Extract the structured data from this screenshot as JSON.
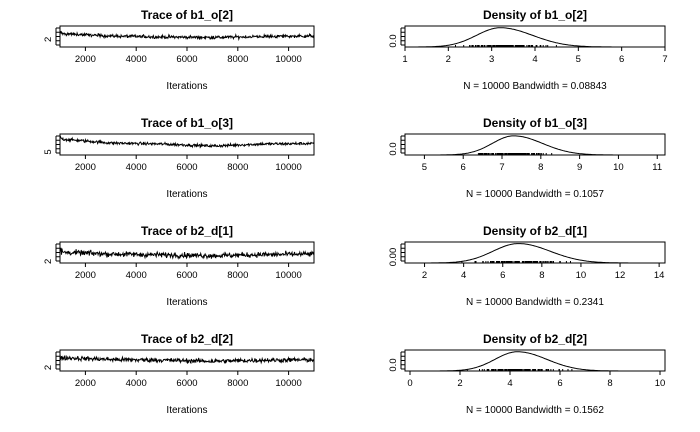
{
  "chart_data": [
    {
      "type": "line",
      "kind": "trace",
      "title": "Trace of b1_o[2]",
      "xlabel": "Iterations",
      "xlim": [
        1000,
        11000
      ],
      "xticks": [
        2000,
        4000,
        6000,
        8000,
        10000
      ],
      "ylim": [
        1.2,
        3.4
      ],
      "yticks": [
        2
      ],
      "level": [
        2.6,
        2.35,
        2.25,
        2.2,
        2.3,
        2.35
      ],
      "noise": 0.12
    },
    {
      "type": "line",
      "kind": "density",
      "title": "Density of b1_o[2]",
      "xlabel": "N = 10000   Bandwidth = 0.08843",
      "xlim": [
        1,
        7
      ],
      "xticks": [
        1,
        2,
        3,
        4,
        5,
        6,
        7
      ],
      "ylim": [
        0,
        0.72
      ],
      "yticks": [
        0.0
      ],
      "ytick_labels": [
        "0.0"
      ],
      "curve": {
        "mean": 3.2,
        "sd": 0.55,
        "skew": 0.35,
        "peak": 0.66,
        "from": 1.0,
        "to": 6.9
      }
    },
    {
      "type": "line",
      "kind": "trace",
      "title": "Trace of b1_o[3]",
      "xlabel": "Iterations",
      "xlim": [
        1000,
        11000
      ],
      "xticks": [
        2000,
        4000,
        6000,
        8000,
        10000
      ],
      "ylim": [
        4.4,
        8.6
      ],
      "yticks": [
        5
      ],
      "level": [
        7.6,
        6.8,
        6.6,
        6.2,
        6.6,
        6.7
      ],
      "noise": 0.2
    },
    {
      "type": "line",
      "kind": "density",
      "title": "Density of b1_o[3]",
      "xlabel": "N = 10000   Bandwidth = 0.1057",
      "xlim": [
        4.5,
        11.2
      ],
      "xticks": [
        5,
        6,
        7,
        8,
        9,
        10,
        11
      ],
      "ylim": [
        0,
        0.68
      ],
      "yticks": [
        0.0
      ],
      "ytick_labels": [
        "0.0"
      ],
      "curve": {
        "mean": 7.3,
        "sd": 0.55,
        "skew": 0.35,
        "peak": 0.62,
        "from": 4.8,
        "to": 11.1
      }
    },
    {
      "type": "line",
      "kind": "trace",
      "title": "Trace of b2_d[1]",
      "xlabel": "Iterations",
      "xlim": [
        1000,
        11000
      ],
      "xticks": [
        2000,
        4000,
        6000,
        8000,
        10000
      ],
      "ylim": [
        1.2,
        11.5
      ],
      "yticks": [
        2
      ],
      "level": [
        6.5,
        5.6,
        5.2,
        4.8,
        5.3,
        5.6
      ],
      "noise": 0.9
    },
    {
      "type": "line",
      "kind": "density",
      "title": "Density of b2_d[1]",
      "xlabel": "N = 10000   Bandwidth = 0.2341",
      "xlim": [
        1,
        14.3
      ],
      "xticks": [
        2,
        4,
        6,
        8,
        10,
        12,
        14
      ],
      "ylim": [
        0,
        0.2
      ],
      "yticks": [
        0.0
      ],
      "ytick_labels": [
        "0.00"
      ],
      "curve": {
        "mean": 6.8,
        "sd": 1.3,
        "skew": 0.25,
        "peak": 0.185,
        "from": 1.2,
        "to": 14.2
      }
    },
    {
      "type": "line",
      "kind": "trace",
      "title": "Trace of b2_d[2]",
      "xlabel": "Iterations",
      "xlim": [
        1000,
        11000
      ],
      "xticks": [
        2000,
        4000,
        6000,
        8000,
        10000
      ],
      "ylim": [
        1.0,
        7.0
      ],
      "yticks": [
        2
      ],
      "level": [
        4.8,
        4.3,
        4.1,
        3.8,
        4.1,
        4.2
      ],
      "noise": 0.45
    },
    {
      "type": "line",
      "kind": "density",
      "title": "Density of b2_d[2]",
      "xlabel": "N = 10000   Bandwidth = 0.1562",
      "xlim": [
        -0.2,
        10.2
      ],
      "xticks": [
        0,
        2,
        4,
        6,
        8,
        10
      ],
      "ylim": [
        0,
        0.36
      ],
      "yticks": [
        0.0
      ],
      "ytick_labels": [
        "0.0"
      ],
      "curve": {
        "mean": 4.3,
        "sd": 0.9,
        "skew": 0.3,
        "peak": 0.33,
        "from": 0.3,
        "to": 10.0
      }
    }
  ]
}
